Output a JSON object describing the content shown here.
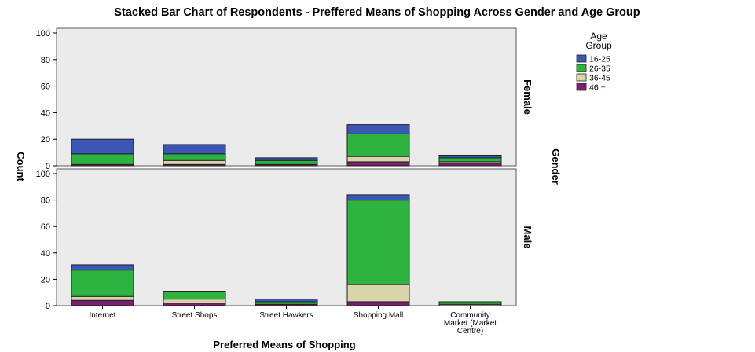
{
  "chart_data": {
    "type": "bar",
    "stacked": true,
    "title": "Stacked Bar Chart of Respondents - Preffered Means of Shopping Across Gender and Age Group",
    "xlabel": "Preferred Means of Shopping",
    "ylabel": "Count",
    "panel_axis_label": "Gender",
    "ylim": [
      0,
      100
    ],
    "yticks": [
      0,
      20,
      40,
      60,
      80,
      100
    ],
    "grid": false,
    "legend": {
      "title": "Age Group",
      "position": "top-right"
    },
    "categories": [
      "Internet",
      "Street Shops",
      "Street Hawkers",
      "Shopping Mall",
      "Community Market (Market Centre)"
    ],
    "category_lines": [
      [
        "Internet"
      ],
      [
        "Street Shops"
      ],
      [
        "Street Hawkers"
      ],
      [
        "Shopping Mall"
      ],
      [
        "Community",
        "Market (Market",
        "Centre)"
      ]
    ],
    "series": [
      {
        "name": "16-25",
        "color": "#3c56b4"
      },
      {
        "name": "26-35",
        "color": "#2db33f"
      },
      {
        "name": "36-45",
        "color": "#d8d6a8"
      },
      {
        "name": "46 +",
        "color": "#7a1f6f"
      }
    ],
    "panels": [
      {
        "name": "Female",
        "values": {
          "16-25": [
            11,
            7,
            2,
            7,
            2
          ],
          "26-35": [
            8,
            5,
            3,
            17,
            3
          ],
          "36-45": [
            0,
            3,
            0,
            4,
            1
          ],
          "46 +": [
            1,
            1,
            1,
            3,
            2
          ]
        }
      },
      {
        "name": "Male",
        "values": {
          "16-25": [
            4,
            0,
            2,
            4,
            0
          ],
          "26-35": [
            20,
            6,
            2,
            64,
            2
          ],
          "36-45": [
            3,
            3,
            0,
            13,
            1
          ],
          "46 +": [
            4,
            2,
            1,
            3,
            0
          ]
        }
      }
    ]
  }
}
